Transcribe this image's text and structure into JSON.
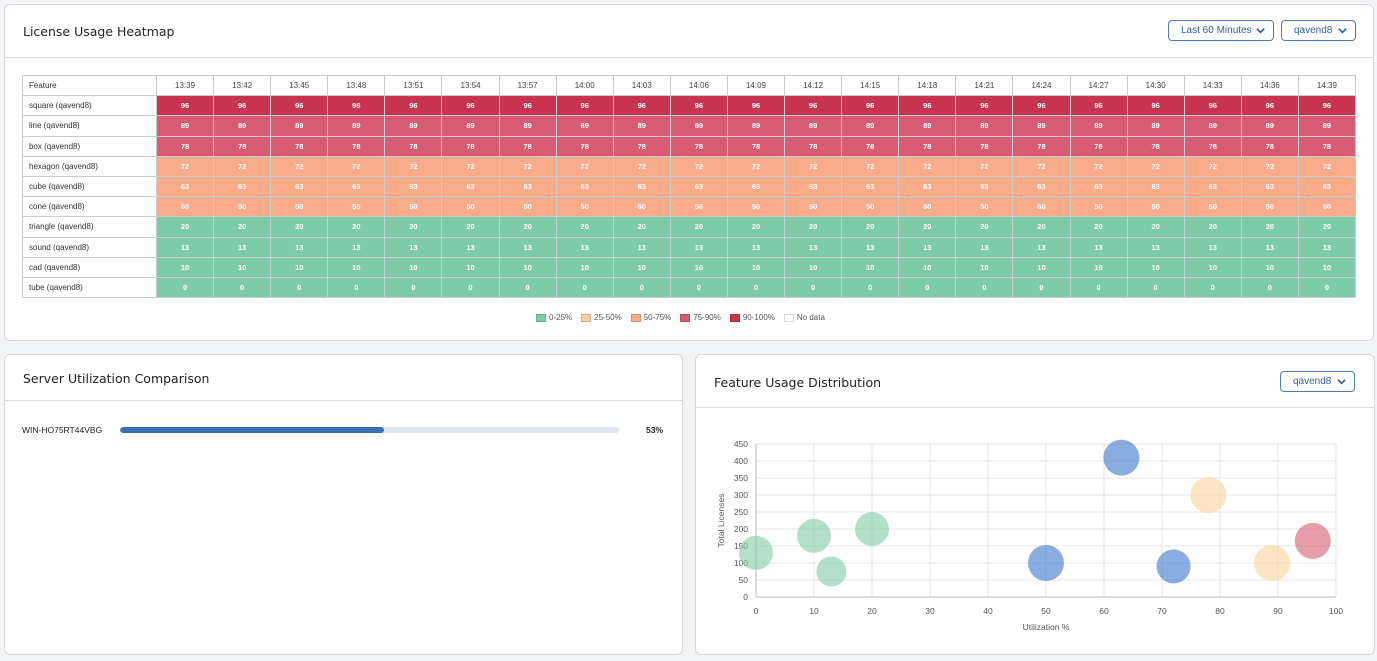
{
  "heatmap_panel": {
    "title": "License Usage Heatmap",
    "time_range_select": "Last 60 Minutes",
    "server_select": "qavend8",
    "feature_header": "Feature",
    "times": [
      "13:39",
      "13:42",
      "13:45",
      "13:48",
      "13:51",
      "13:54",
      "13:57",
      "14:00",
      "14:03",
      "14:06",
      "14:09",
      "14:12",
      "14:15",
      "14:18",
      "14:21",
      "14:24",
      "14:27",
      "14:30",
      "14:33",
      "14:36",
      "14:39"
    ],
    "rows": [
      {
        "feature": "square (qavend8)",
        "value": "96"
      },
      {
        "feature": "line (qavend8)",
        "value": "89"
      },
      {
        "feature": "box (qavend8)",
        "value": "78"
      },
      {
        "feature": "hexagon (qavend8)",
        "value": "72"
      },
      {
        "feature": "cube (qavend8)",
        "value": "63"
      },
      {
        "feature": "cone (qavend8)",
        "value": "50"
      },
      {
        "feature": "triangle (qavend8)",
        "value": "20"
      },
      {
        "feature": "sound (qavend8)",
        "value": "13"
      },
      {
        "feature": "cad (qavend8)",
        "value": "10"
      },
      {
        "feature": "tube (qavend8)",
        "value": "0"
      }
    ],
    "legend": [
      {
        "label": "0-25%",
        "color": "#7ecba9"
      },
      {
        "label": "25-50%",
        "color": "#fcd29a"
      },
      {
        "label": "50-75%",
        "color": "#f9ab8a"
      },
      {
        "label": "75-90%",
        "color": "#d85b74"
      },
      {
        "label": "90-100%",
        "color": "#c8344f"
      },
      {
        "label": "No data",
        "color": "#ffffff"
      }
    ]
  },
  "server_panel": {
    "title": "Server Utilization Comparison",
    "servers": [
      {
        "name": "WIN-HO75RT44VBG",
        "utilization": 53,
        "label": "53%"
      }
    ]
  },
  "distribution_panel": {
    "title": "Feature Usage Distribution",
    "server_select": "qavend8"
  },
  "chart_data": {
    "type": "scatter",
    "title": "",
    "xlabel": "Utilization %",
    "ylabel": "Total Licenses",
    "xlim": [
      0,
      100
    ],
    "ylim": [
      0,
      450
    ],
    "x_ticks": [
      0,
      10,
      20,
      30,
      40,
      50,
      60,
      70,
      80,
      90,
      100
    ],
    "y_ticks": [
      0,
      50,
      100,
      150,
      200,
      250,
      300,
      350,
      400,
      450
    ],
    "grid": true,
    "points": [
      {
        "x": 0,
        "y": 130,
        "r": 17,
        "color": "#7ecba9"
      },
      {
        "x": 10,
        "y": 180,
        "r": 17,
        "color": "#7ecba9"
      },
      {
        "x": 13,
        "y": 75,
        "r": 15,
        "color": "#7ecba9"
      },
      {
        "x": 20,
        "y": 200,
        "r": 17,
        "color": "#7ecba9"
      },
      {
        "x": 50,
        "y": 100,
        "r": 18,
        "color": "#3a77c8"
      },
      {
        "x": 63,
        "y": 410,
        "r": 18,
        "color": "#3a77c8"
      },
      {
        "x": 72,
        "y": 90,
        "r": 17,
        "color": "#3a77c8"
      },
      {
        "x": 78,
        "y": 300,
        "r": 18,
        "color": "#fcd29a"
      },
      {
        "x": 89,
        "y": 100,
        "r": 18,
        "color": "#fcd29a"
      },
      {
        "x": 96,
        "y": 165,
        "r": 18,
        "color": "#d85b74"
      }
    ]
  }
}
